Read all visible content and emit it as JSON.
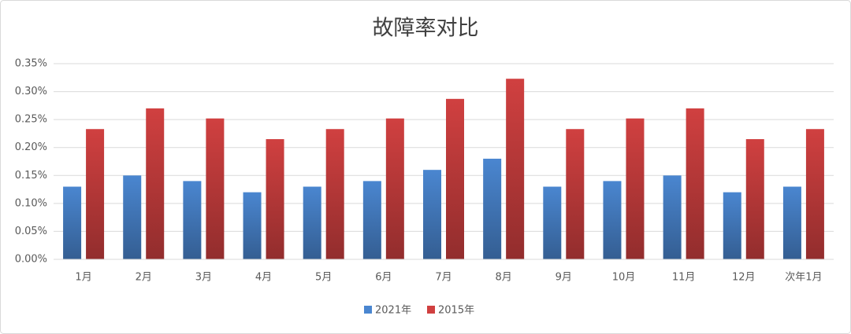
{
  "chart_data": {
    "type": "bar",
    "title": "故障率对比",
    "categories": [
      "1月",
      "2月",
      "3月",
      "4月",
      "5月",
      "6月",
      "7月",
      "8月",
      "9月",
      "10月",
      "11月",
      "12月",
      "次年1月"
    ],
    "series": [
      {
        "name": "2021年",
        "color": "#4a86d0",
        "values": [
          0.13,
          0.15,
          0.14,
          0.12,
          0.13,
          0.14,
          0.16,
          0.18,
          0.13,
          0.14,
          0.15,
          0.12,
          0.13
        ]
      },
      {
        "name": "2015年",
        "color": "#d04040",
        "values": [
          0.233,
          0.27,
          0.252,
          0.215,
          0.233,
          0.252,
          0.287,
          0.323,
          0.233,
          0.252,
          0.27,
          0.215,
          0.233
        ]
      }
    ],
    "ylim": [
      0,
      0.35
    ],
    "yticks": [
      {
        "value": 0,
        "label": "0.00%"
      },
      {
        "value": 0.05,
        "label": "0.05%"
      },
      {
        "value": 0.1,
        "label": "0.10%"
      },
      {
        "value": 0.15,
        "label": "0.15%"
      },
      {
        "value": 0.2,
        "label": "0.20%"
      },
      {
        "value": 0.25,
        "label": "0.25%"
      },
      {
        "value": 0.3,
        "label": "0.30%"
      },
      {
        "value": 0.35,
        "label": "0.35%"
      }
    ],
    "grid": true,
    "legend": "bottom"
  }
}
